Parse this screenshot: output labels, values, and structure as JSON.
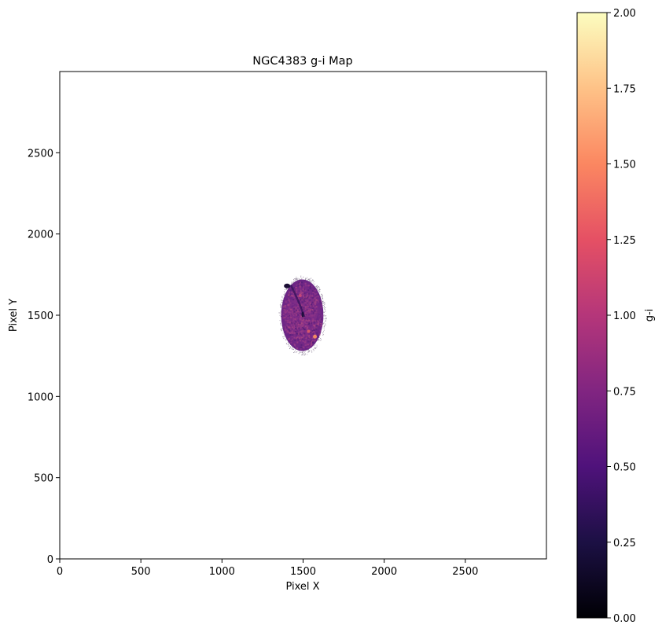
{
  "chart_data": {
    "type": "heatmap",
    "title": "NGC4383 g-i Map",
    "xlabel": "Pixel X",
    "ylabel": "Pixel Y",
    "xlim": [
      0,
      3000
    ],
    "ylim": [
      0,
      3000
    ],
    "xticks": [
      0,
      500,
      1000,
      1500,
      2000,
      2500
    ],
    "yticks": [
      0,
      500,
      1000,
      1500,
      2000,
      2500
    ],
    "colorbar": {
      "label": "g-i",
      "colormap": "magma",
      "range": [
        0.0,
        2.0
      ],
      "ticks": [
        "0.00",
        "0.25",
        "0.50",
        "0.75",
        "1.00",
        "1.25",
        "1.50",
        "1.75",
        "2.00"
      ],
      "colors": [
        "#000004",
        "#1c1044",
        "#4f127b",
        "#812581",
        "#b5367a",
        "#e55064",
        "#fb8761",
        "#fec287",
        "#fcfdbf"
      ]
    },
    "source": {
      "center_x": 1495,
      "center_y": 1500,
      "semi_axis_x": 130,
      "semi_axis_y": 220,
      "typical_value": 0.75,
      "color": "#7e2f86"
    }
  }
}
